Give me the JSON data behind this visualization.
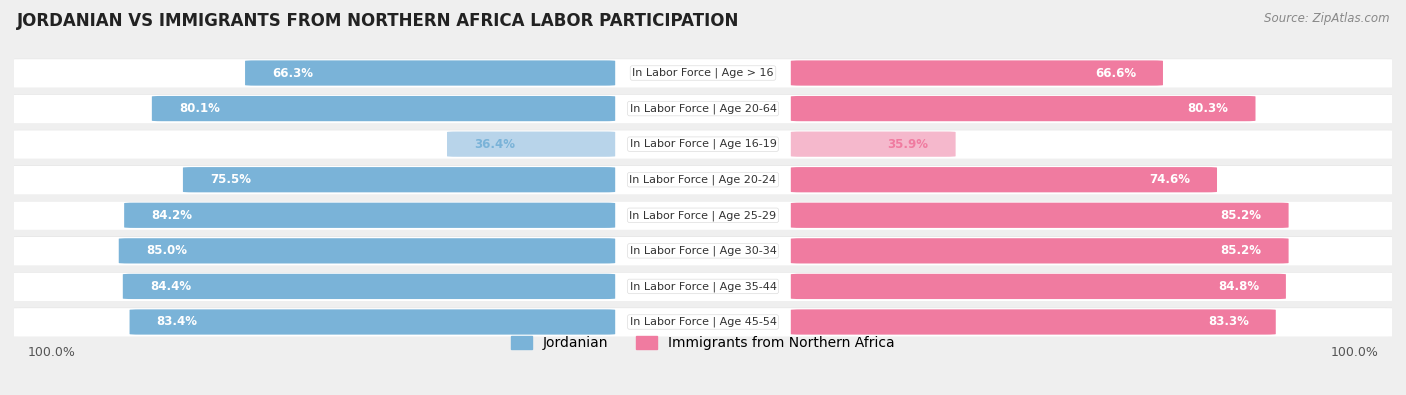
{
  "title": "JORDANIAN VS IMMIGRANTS FROM NORTHERN AFRICA LABOR PARTICIPATION",
  "source": "Source: ZipAtlas.com",
  "categories": [
    "In Labor Force | Age > 16",
    "In Labor Force | Age 20-64",
    "In Labor Force | Age 16-19",
    "In Labor Force | Age 20-24",
    "In Labor Force | Age 25-29",
    "In Labor Force | Age 30-34",
    "In Labor Force | Age 35-44",
    "In Labor Force | Age 45-54"
  ],
  "jordanian_values": [
    66.3,
    80.1,
    36.4,
    75.5,
    84.2,
    85.0,
    84.4,
    83.4
  ],
  "immigrant_values": [
    66.6,
    80.3,
    35.9,
    74.6,
    85.2,
    85.2,
    84.8,
    83.3
  ],
  "jordanian_color": "#7ab3d8",
  "jordanian_color_light": "#b8d4ea",
  "immigrant_color": "#f07ba0",
  "immigrant_color_light": "#f5b8cc",
  "background_color": "#efefef",
  "row_bg_color": "#f8f8f8",
  "row_bg_color2": "#e8e8e8",
  "title_fontsize": 12,
  "legend_fontsize": 10,
  "value_fontsize": 8.5,
  "category_fontsize": 8.0,
  "bar_height": 0.62
}
